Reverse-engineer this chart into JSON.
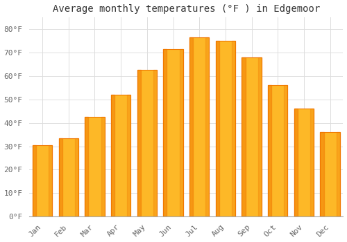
{
  "title": "Average monthly temperatures (°F ) in Edgemoor",
  "months": [
    "Jan",
    "Feb",
    "Mar",
    "Apr",
    "May",
    "Jun",
    "Jul",
    "Aug",
    "Sep",
    "Oct",
    "Nov",
    "Dec"
  ],
  "values": [
    30.5,
    33.5,
    42.5,
    52.0,
    62.5,
    71.5,
    76.5,
    75.0,
    68.0,
    56.0,
    46.0,
    36.0
  ],
  "bar_color_face": "#FDB827",
  "bar_color_edge": "#F07800",
  "ylim": [
    0,
    85
  ],
  "yticks": [
    0,
    10,
    20,
    30,
    40,
    50,
    60,
    70,
    80
  ],
  "ytick_labels": [
    "0°F",
    "10°F",
    "20°F",
    "30°F",
    "40°F",
    "50°F",
    "60°F",
    "70°F",
    "80°F"
  ],
  "background_color": "#FFFFFF",
  "grid_color": "#DDDDDD",
  "title_fontsize": 10,
  "tick_fontsize": 8,
  "font_family": "monospace",
  "tick_color": "#666666"
}
